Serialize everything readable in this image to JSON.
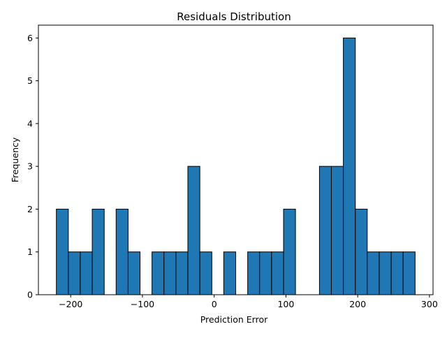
{
  "chart_data": {
    "type": "bar",
    "title": "Residuals Distribution",
    "xlabel": "Prediction Error",
    "ylabel": "Frequency",
    "xlim": [
      -245,
      305
    ],
    "ylim": [
      0,
      6.3
    ],
    "x_ticks": [
      -200,
      -100,
      0,
      100,
      200,
      300
    ],
    "x_tick_labels": [
      "−200",
      "−100",
      "0",
      "100",
      "200",
      "300"
    ],
    "y_ticks": [
      0,
      1,
      2,
      3,
      4,
      5,
      6
    ],
    "y_tick_labels": [
      "0",
      "1",
      "2",
      "3",
      "4",
      "5",
      "6"
    ],
    "grid": false,
    "bin_edges": [
      -220,
      -203.3,
      -186.7,
      -170,
      -153.3,
      -136.7,
      -120,
      -103.3,
      -86.7,
      -70,
      -53.3,
      -36.7,
      -20,
      -3.3,
      13.3,
      30,
      46.7,
      63.3,
      80,
      96.7,
      113.3,
      130,
      146.7,
      163.3,
      180,
      196.7,
      213.3,
      230,
      246.7,
      263.3,
      280
    ],
    "counts": [
      2,
      1,
      1,
      2,
      0,
      2,
      1,
      0,
      1,
      1,
      1,
      3,
      1,
      0,
      1,
      0,
      1,
      1,
      1,
      2,
      0,
      0,
      3,
      3,
      6,
      2,
      1,
      1,
      1,
      1
    ],
    "bar_color": "#1f77b4",
    "edge_color": "#000000"
  }
}
